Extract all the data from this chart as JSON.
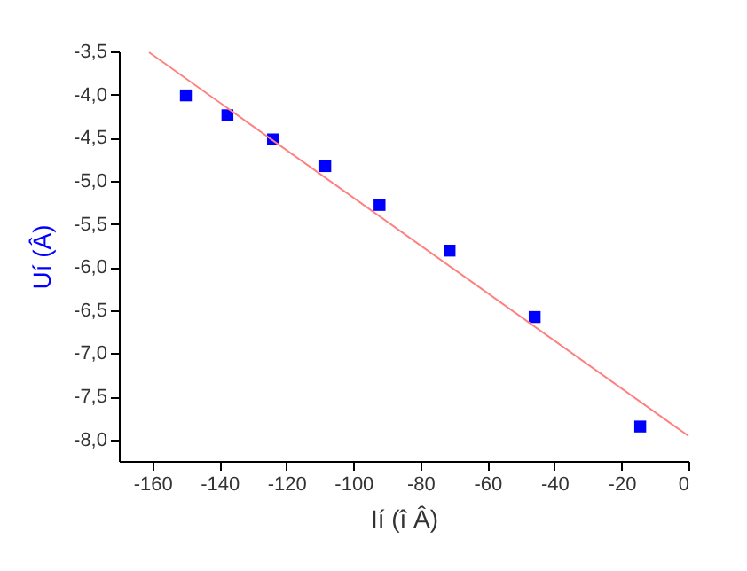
{
  "chart_data": {
    "type": "scatter",
    "xlabel": "Ií  (î  Â)",
    "ylabel": "Uí  (Â)",
    "grid": false,
    "series": [
      {
        "marker": "square",
        "color": "#0000ff",
        "x": [
          -150,
          -137.6,
          -124,
          -108.4,
          -92.2,
          -71.3,
          -45.9,
          -14.4
        ],
        "values": [
          -4.01,
          -4.24,
          -4.52,
          -4.83,
          -5.28,
          -5.81,
          -6.58,
          -7.85
        ]
      },
      {
        "type": "line",
        "color": "#ff8080",
        "x": [
          -161,
          0
        ],
        "values": [
          -3.51,
          -7.96
        ]
      }
    ],
    "xlim": [
      -170,
      0
    ],
    "xticks": [
      -160,
      -140,
      -120,
      -100,
      -80,
      -60,
      -40,
      -20,
      0
    ],
    "ylim": [
      -8.25,
      -3.5
    ],
    "yticks": [
      {
        "value": -3.5,
        "label": "-3,5"
      },
      {
        "value": -4.0,
        "label": "-4,0"
      },
      {
        "value": -4.5,
        "label": "-4,5"
      },
      {
        "value": -5.0,
        "label": "-5,0"
      },
      {
        "value": -5.5,
        "label": "-5,5"
      },
      {
        "value": -6.0,
        "label": "-6,0"
      },
      {
        "value": -6.5,
        "label": "-6,5"
      },
      {
        "value": -7.0,
        "label": "-7,0"
      },
      {
        "value": -7.5,
        "label": "-7,5"
      },
      {
        "value": -8.0,
        "label": "-8,0"
      }
    ]
  }
}
